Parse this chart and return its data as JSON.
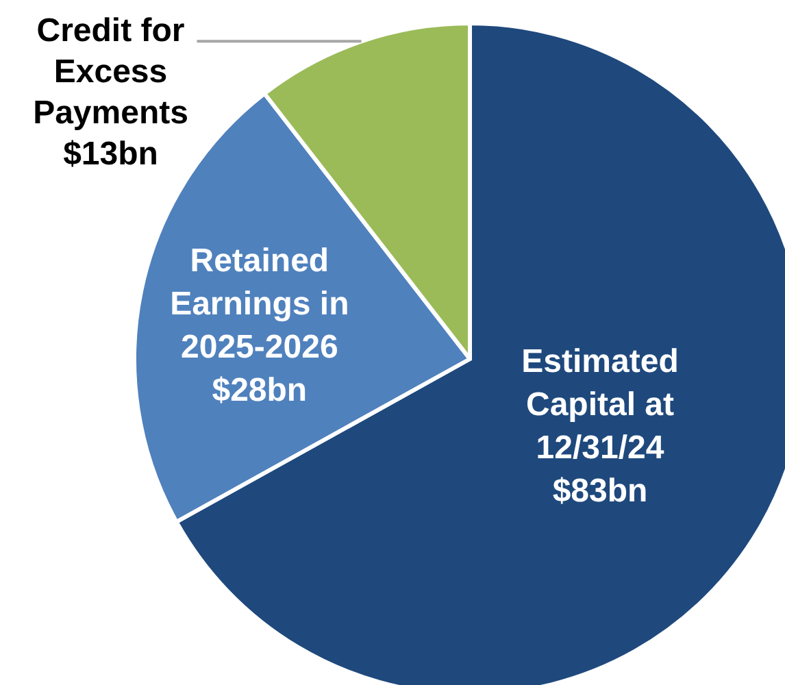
{
  "chart_data": {
    "type": "pie",
    "categories": [
      "Estimated Capital at 12/31/24",
      "Retained Earnings in 2025-2026",
      "Credit for Excess Payments"
    ],
    "values": [
      83,
      28,
      13
    ],
    "colors": [
      "#1f497d",
      "#4f81bd",
      "#9bbb59"
    ],
    "value_labels": [
      "$83bn",
      "$28bn",
      "$13bn"
    ]
  }
}
